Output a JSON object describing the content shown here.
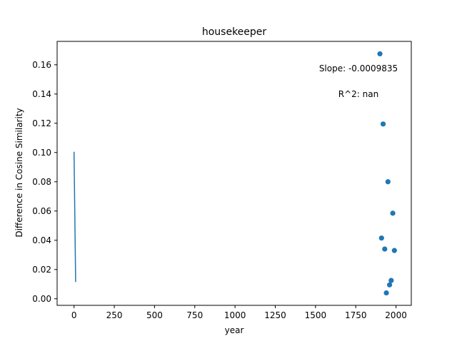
{
  "chart_data": {
    "type": "scatter",
    "title": "housekeeper",
    "xlabel": "year",
    "ylabel": "Difference in Cosine Similarity",
    "xlim": [
      -105,
      2095
    ],
    "ylim": [
      -0.0045,
      0.176
    ],
    "x_ticks": [
      0,
      250,
      500,
      750,
      1000,
      1250,
      1500,
      1750,
      2000
    ],
    "y_ticks": [
      0.0,
      0.02,
      0.04,
      0.06,
      0.08,
      0.1,
      0.12,
      0.14,
      0.16
    ],
    "y_tick_labels": [
      "0.00",
      "0.02",
      "0.04",
      "0.06",
      "0.08",
      "0.10",
      "0.12",
      "0.14",
      "0.16"
    ],
    "grid": false,
    "points": {
      "x": [
        1900,
        1910,
        1920,
        1930,
        1940,
        1950,
        1960,
        1970,
        1980,
        1990
      ],
      "y": [
        0.1675,
        0.0415,
        0.1195,
        0.034,
        0.004,
        0.08,
        0.0095,
        0.0125,
        0.0585,
        0.033
      ],
      "color": "#1f77b4"
    },
    "fit_line": {
      "x": [
        0,
        10
      ],
      "y": [
        0.1005,
        0.0115
      ],
      "color": "#1f77b4"
    },
    "annotations": [
      {
        "text": "Slope: -0.0009835"
      },
      {
        "text": "R^2: nan"
      }
    ]
  }
}
